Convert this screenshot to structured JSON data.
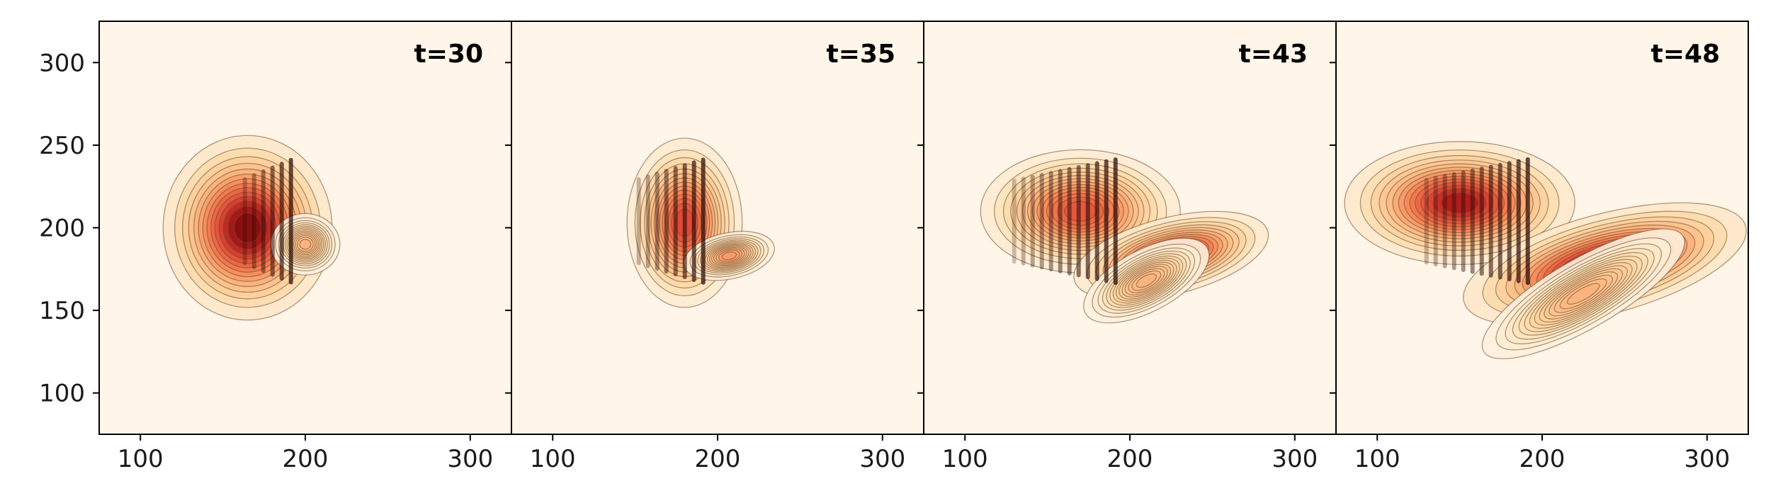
{
  "chart_data": {
    "type": "heatmap",
    "colormap": "OrRd",
    "background_color": "#fff5e8",
    "contour_color": "#6b4a2e",
    "xlim": [
      75,
      325
    ],
    "ylim": [
      75,
      325
    ],
    "x_ticks": [
      100,
      200,
      300
    ],
    "y_ticks": [
      100,
      150,
      200,
      250,
      300
    ],
    "y_tick_labels": [
      "100",
      "150",
      "200",
      "250",
      "300"
    ],
    "panels": [
      {
        "title": "t=30",
        "x_tick_labels": [
          "100",
          "200",
          "300"
        ],
        "blobs": [
          {
            "x": 165,
            "y": 200,
            "sx": 22,
            "sy": 24,
            "amp": 1.0,
            "angle": 0
          },
          {
            "x": 200,
            "y": 190,
            "sx": 9,
            "sy": 8,
            "amp": 0.35,
            "angle": 0
          }
        ],
        "cut_x": 193,
        "stripe_x_min": 160
      },
      {
        "title": "t=35",
        "x_tick_labels": [
          "100",
          "200",
          "300"
        ],
        "blobs": [
          {
            "x": 180,
            "y": 203,
            "sx": 15,
            "sy": 22,
            "amp": 0.75,
            "angle": 0
          },
          {
            "x": 207,
            "y": 183,
            "sx": 12,
            "sy": 6,
            "amp": 0.45,
            "angle": -12
          }
        ],
        "cut_x": 193,
        "stripe_x_min": 148
      },
      {
        "title": "t=43",
        "x_tick_labels": [
          "100",
          "200",
          "300"
        ],
        "blobs": [
          {
            "x": 170,
            "y": 210,
            "sx": 26,
            "sy": 16,
            "amp": 0.7,
            "angle": 0
          },
          {
            "x": 225,
            "y": 183,
            "sx": 26,
            "sy": 10,
            "amp": 0.85,
            "angle": -14
          },
          {
            "x": 210,
            "y": 168,
            "sx": 18,
            "sy": 8,
            "amp": 0.35,
            "angle": -28
          }
        ],
        "cut_x": 193,
        "stripe_x_min": 128
      },
      {
        "title": "t=48",
        "x_tick_labels": [
          "100",
          "200",
          "300"
        ],
        "blobs": [
          {
            "x": 150,
            "y": 215,
            "sx": 30,
            "sy": 16,
            "amp": 0.9,
            "angle": 0
          },
          {
            "x": 238,
            "y": 178,
            "sx": 38,
            "sy": 13,
            "amp": 1.0,
            "angle": -15
          },
          {
            "x": 225,
            "y": 160,
            "sx": 30,
            "sy": 9,
            "amp": 0.35,
            "angle": -30
          }
        ],
        "cut_x": 193,
        "stripe_x_min": 125
      }
    ]
  }
}
